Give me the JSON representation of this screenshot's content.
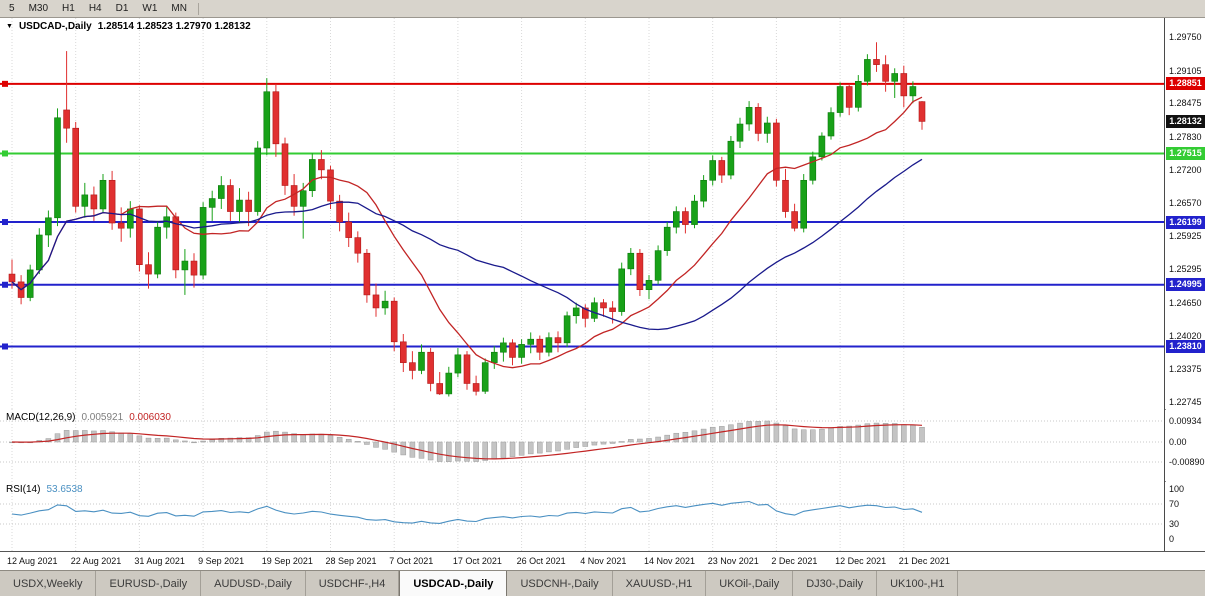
{
  "toolbar": {
    "timeframes": [
      "5",
      "M30",
      "H1",
      "H4",
      "D1",
      "W1",
      "MN"
    ]
  },
  "main_chart": {
    "title": "USDCAD-,Daily",
    "ohlc": "1.28514 1.28523 1.27970 1.28132",
    "price_axis": [
      "1.29750",
      "1.29105",
      "1.28475",
      "1.27830",
      "1.27200",
      "1.26570",
      "1.25925",
      "1.25295",
      "1.24650",
      "1.24020",
      "1.23375",
      "1.22745"
    ],
    "lines": [
      {
        "price": 1.28851,
        "label": "1.28851",
        "color": "#dd0000"
      },
      {
        "price": 1.27515,
        "label": "1.27515",
        "color": "#33cc33"
      },
      {
        "price": 1.26199,
        "label": "1.26199",
        "color": "#2222cc"
      },
      {
        "price": 1.24995,
        "label": "1.24995",
        "color": "#2222cc"
      },
      {
        "price": 1.2381,
        "label": "1.23810",
        "color": "#2222cc"
      }
    ],
    "current_price": {
      "price": 1.28132,
      "label": "1.28132",
      "color": "#111111"
    }
  },
  "macd_panel": {
    "label": "MACD(12,26,9)",
    "value_main": "0.005921",
    "value_signal": "0.006030",
    "axis": [
      "0.00934",
      "0.00",
      "-0.00890"
    ]
  },
  "rsi_panel": {
    "label": "RSI(14)",
    "value": "53.6538",
    "axis": [
      "100",
      "70",
      "30",
      "0"
    ]
  },
  "date_axis": [
    "12 Aug 2021",
    "22 Aug 2021",
    "31 Aug 2021",
    "9 Sep 2021",
    "19 Sep 2021",
    "28 Sep 2021",
    "7 Oct 2021",
    "17 Oct 2021",
    "26 Oct 2021",
    "4 Nov 2021",
    "14 Nov 2021",
    "23 Nov 2021",
    "2 Dec 2021",
    "12 Dec 2021",
    "21 Dec 2021"
  ],
  "tabs": {
    "items": [
      {
        "label": "USDX,Weekly",
        "active": false
      },
      {
        "label": "EURUSD-,Daily",
        "active": false
      },
      {
        "label": "AUDUSD-,Daily",
        "active": false
      },
      {
        "label": "USDCHF-,H4",
        "active": false
      },
      {
        "label": "USDCAD-,Daily",
        "active": true
      },
      {
        "label": "USDCNH-,Daily",
        "active": false
      },
      {
        "label": "XAUUSD-,H1",
        "active": false
      },
      {
        "label": "UKOil-,Daily",
        "active": false
      },
      {
        "label": "DJ30-,Daily",
        "active": false
      },
      {
        "label": "UK100-,H1",
        "active": false
      }
    ]
  },
  "chart_data": {
    "type": "candlestick",
    "title": "USDCAD-,Daily",
    "current_ohlc": {
      "open": 1.28514,
      "high": 1.28523,
      "low": 1.2797,
      "close": 1.28132
    },
    "y_ticks": [
      1.2975,
      1.29105,
      1.28475,
      1.2783,
      1.272,
      1.2657,
      1.25925,
      1.25295,
      1.2465,
      1.2402,
      1.23375,
      1.22745
    ],
    "x_tick_labels": [
      "12 Aug 2021",
      "22 Aug 2021",
      "31 Aug 2021",
      "9 Sep 2021",
      "19 Sep 2021",
      "28 Sep 2021",
      "7 Oct 2021",
      "17 Oct 2021",
      "26 Oct 2021",
      "4 Nov 2021",
      "14 Nov 2021",
      "23 Nov 2021",
      "2 Dec 2021",
      "12 Dec 2021",
      "21 Dec 2021"
    ],
    "horizontal_levels": [
      1.28851,
      1.27515,
      1.26199,
      1.24995,
      1.2381
    ],
    "overlays": [
      {
        "name": "ma-fast",
        "type": "sma",
        "period": 13,
        "color": "#c22525"
      },
      {
        "name": "ma-slow",
        "type": "sma",
        "period": 34,
        "color": "#1a1a8c"
      }
    ],
    "indicators": [
      {
        "name": "MACD",
        "params": [
          12,
          26,
          9
        ],
        "values": [
          0.005921,
          0.00603
        ],
        "axis_range": [
          -0.0089,
          0.00934
        ],
        "histogram_color": "#c4c4c4",
        "signal_color": "#c22525"
      },
      {
        "name": "RSI",
        "params": [
          14
        ],
        "value": 53.6538,
        "levels": [
          70,
          30
        ],
        "axis_range": [
          0,
          100
        ],
        "line_color": "#4a90c2"
      }
    ],
    "candles": [
      [
        1.252,
        1.2548,
        1.2492,
        1.2505
      ],
      [
        1.2505,
        1.2518,
        1.2462,
        1.2475
      ],
      [
        1.2475,
        1.2538,
        1.2468,
        1.2528
      ],
      [
        1.2528,
        1.2608,
        1.252,
        1.2595
      ],
      [
        1.2595,
        1.2642,
        1.2572,
        1.2628
      ],
      [
        1.2628,
        1.2838,
        1.2612,
        1.282
      ],
      [
        1.2835,
        1.2948,
        1.2772,
        1.28
      ],
      [
        1.28,
        1.2812,
        1.2638,
        1.265
      ],
      [
        1.265,
        1.2695,
        1.2628,
        1.2672
      ],
      [
        1.2672,
        1.2688,
        1.2622,
        1.2645
      ],
      [
        1.2645,
        1.2712,
        1.2638,
        1.27
      ],
      [
        1.27,
        1.2718,
        1.2605,
        1.2618
      ],
      [
        1.2618,
        1.2648,
        1.2582,
        1.2608
      ],
      [
        1.2608,
        1.266,
        1.259,
        1.2645
      ],
      [
        1.2645,
        1.2652,
        1.2525,
        1.2538
      ],
      [
        1.2538,
        1.2562,
        1.2492,
        1.252
      ],
      [
        1.252,
        1.2622,
        1.2512,
        1.261
      ],
      [
        1.261,
        1.265,
        1.2588,
        1.263
      ],
      [
        1.263,
        1.2638,
        1.2512,
        1.2528
      ],
      [
        1.2528,
        1.2568,
        1.248,
        1.2545
      ],
      [
        1.2545,
        1.256,
        1.2494,
        1.2518
      ],
      [
        1.2518,
        1.2658,
        1.251,
        1.2648
      ],
      [
        1.2648,
        1.268,
        1.2622,
        1.2665
      ],
      [
        1.2665,
        1.2708,
        1.2645,
        1.269
      ],
      [
        1.269,
        1.2702,
        1.2622,
        1.264
      ],
      [
        1.264,
        1.2685,
        1.2618,
        1.2662
      ],
      [
        1.2662,
        1.2678,
        1.2612,
        1.264
      ],
      [
        1.264,
        1.2775,
        1.2632,
        1.2762
      ],
      [
        1.2762,
        1.2896,
        1.2748,
        1.287
      ],
      [
        1.287,
        1.2885,
        1.2745,
        1.277
      ],
      [
        1.277,
        1.2782,
        1.2672,
        1.269
      ],
      [
        1.269,
        1.2712,
        1.2632,
        1.265
      ],
      [
        1.265,
        1.2695,
        1.2588,
        1.268
      ],
      [
        1.268,
        1.2752,
        1.2668,
        1.274
      ],
      [
        1.274,
        1.2758,
        1.2702,
        1.272
      ],
      [
        1.272,
        1.2728,
        1.2645,
        1.266
      ],
      [
        1.266,
        1.2672,
        1.2602,
        1.262
      ],
      [
        1.262,
        1.2638,
        1.2572,
        1.259
      ],
      [
        1.259,
        1.2602,
        1.2542,
        1.256
      ],
      [
        1.256,
        1.2568,
        1.2465,
        1.248
      ],
      [
        1.248,
        1.2502,
        1.2438,
        1.2455
      ],
      [
        1.2455,
        1.2488,
        1.2442,
        1.2468
      ],
      [
        1.2468,
        1.2475,
        1.2372,
        1.239
      ],
      [
        1.239,
        1.2405,
        1.2332,
        1.235
      ],
      [
        1.235,
        1.2372,
        1.2318,
        1.2335
      ],
      [
        1.2335,
        1.2385,
        1.2328,
        1.237
      ],
      [
        1.237,
        1.2378,
        1.2295,
        1.231
      ],
      [
        1.231,
        1.2332,
        1.2288,
        1.229
      ],
      [
        1.229,
        1.2342,
        1.2285,
        1.233
      ],
      [
        1.233,
        1.2378,
        1.2322,
        1.2365
      ],
      [
        1.2365,
        1.2372,
        1.2298,
        1.231
      ],
      [
        1.231,
        1.2325,
        1.2287,
        1.2295
      ],
      [
        1.2295,
        1.2358,
        1.229,
        1.235
      ],
      [
        1.235,
        1.2382,
        1.2338,
        1.237
      ],
      [
        1.237,
        1.2398,
        1.2352,
        1.2388
      ],
      [
        1.2388,
        1.2395,
        1.2345,
        1.236
      ],
      [
        1.236,
        1.2395,
        1.2348,
        1.2385
      ],
      [
        1.2385,
        1.2408,
        1.2368,
        1.2395
      ],
      [
        1.2395,
        1.2402,
        1.2355,
        1.237
      ],
      [
        1.237,
        1.2408,
        1.2362,
        1.2398
      ],
      [
        1.2398,
        1.241,
        1.237,
        1.2388
      ],
      [
        1.2388,
        1.2448,
        1.238,
        1.244
      ],
      [
        1.244,
        1.2465,
        1.2425,
        1.2455
      ],
      [
        1.2455,
        1.2462,
        1.2418,
        1.2435
      ],
      [
        1.2435,
        1.2475,
        1.2428,
        1.2465
      ],
      [
        1.2465,
        1.2472,
        1.2438,
        1.2455
      ],
      [
        1.2455,
        1.2468,
        1.2425,
        1.2448
      ],
      [
        1.2448,
        1.2542,
        1.244,
        1.253
      ],
      [
        1.253,
        1.257,
        1.2518,
        1.256
      ],
      [
        1.256,
        1.2568,
        1.2478,
        1.249
      ],
      [
        1.249,
        1.2518,
        1.2472,
        1.2508
      ],
      [
        1.2508,
        1.2575,
        1.25,
        1.2565
      ],
      [
        1.2565,
        1.262,
        1.2555,
        1.261
      ],
      [
        1.261,
        1.265,
        1.2598,
        1.264
      ],
      [
        1.264,
        1.2648,
        1.2598,
        1.2615
      ],
      [
        1.2615,
        1.2672,
        1.2608,
        1.266
      ],
      [
        1.266,
        1.271,
        1.2648,
        1.27
      ],
      [
        1.27,
        1.2748,
        1.269,
        1.2738
      ],
      [
        1.2738,
        1.2745,
        1.2695,
        1.271
      ],
      [
        1.271,
        1.2785,
        1.2702,
        1.2775
      ],
      [
        1.2775,
        1.282,
        1.2762,
        1.2808
      ],
      [
        1.2808,
        1.2852,
        1.2795,
        1.284
      ],
      [
        1.284,
        1.2848,
        1.2775,
        1.279
      ],
      [
        1.279,
        1.2822,
        1.2772,
        1.281
      ],
      [
        1.281,
        1.2818,
        1.2688,
        1.27
      ],
      [
        1.27,
        1.2722,
        1.2628,
        1.264
      ],
      [
        1.264,
        1.2655,
        1.2602,
        1.2608
      ],
      [
        1.2608,
        1.2712,
        1.26,
        1.27
      ],
      [
        1.27,
        1.2755,
        1.2692,
        1.2745
      ],
      [
        1.2745,
        1.2792,
        1.2738,
        1.2785
      ],
      [
        1.2785,
        1.284,
        1.2778,
        1.283
      ],
      [
        1.283,
        1.2888,
        1.2822,
        1.288
      ],
      [
        1.288,
        1.2885,
        1.2825,
        1.284
      ],
      [
        1.284,
        1.2902,
        1.2832,
        1.289
      ],
      [
        1.289,
        1.2942,
        1.2882,
        1.2932
      ],
      [
        1.2932,
        1.2965,
        1.2908,
        1.2922
      ],
      [
        1.2922,
        1.294,
        1.287,
        1.289
      ],
      [
        1.289,
        1.2915,
        1.2858,
        1.2905
      ],
      [
        1.2905,
        1.292,
        1.284,
        1.2862
      ],
      [
        1.2862,
        1.289,
        1.2848,
        1.288
      ],
      [
        1.2851,
        1.2852,
        1.2797,
        1.2813
      ]
    ]
  }
}
